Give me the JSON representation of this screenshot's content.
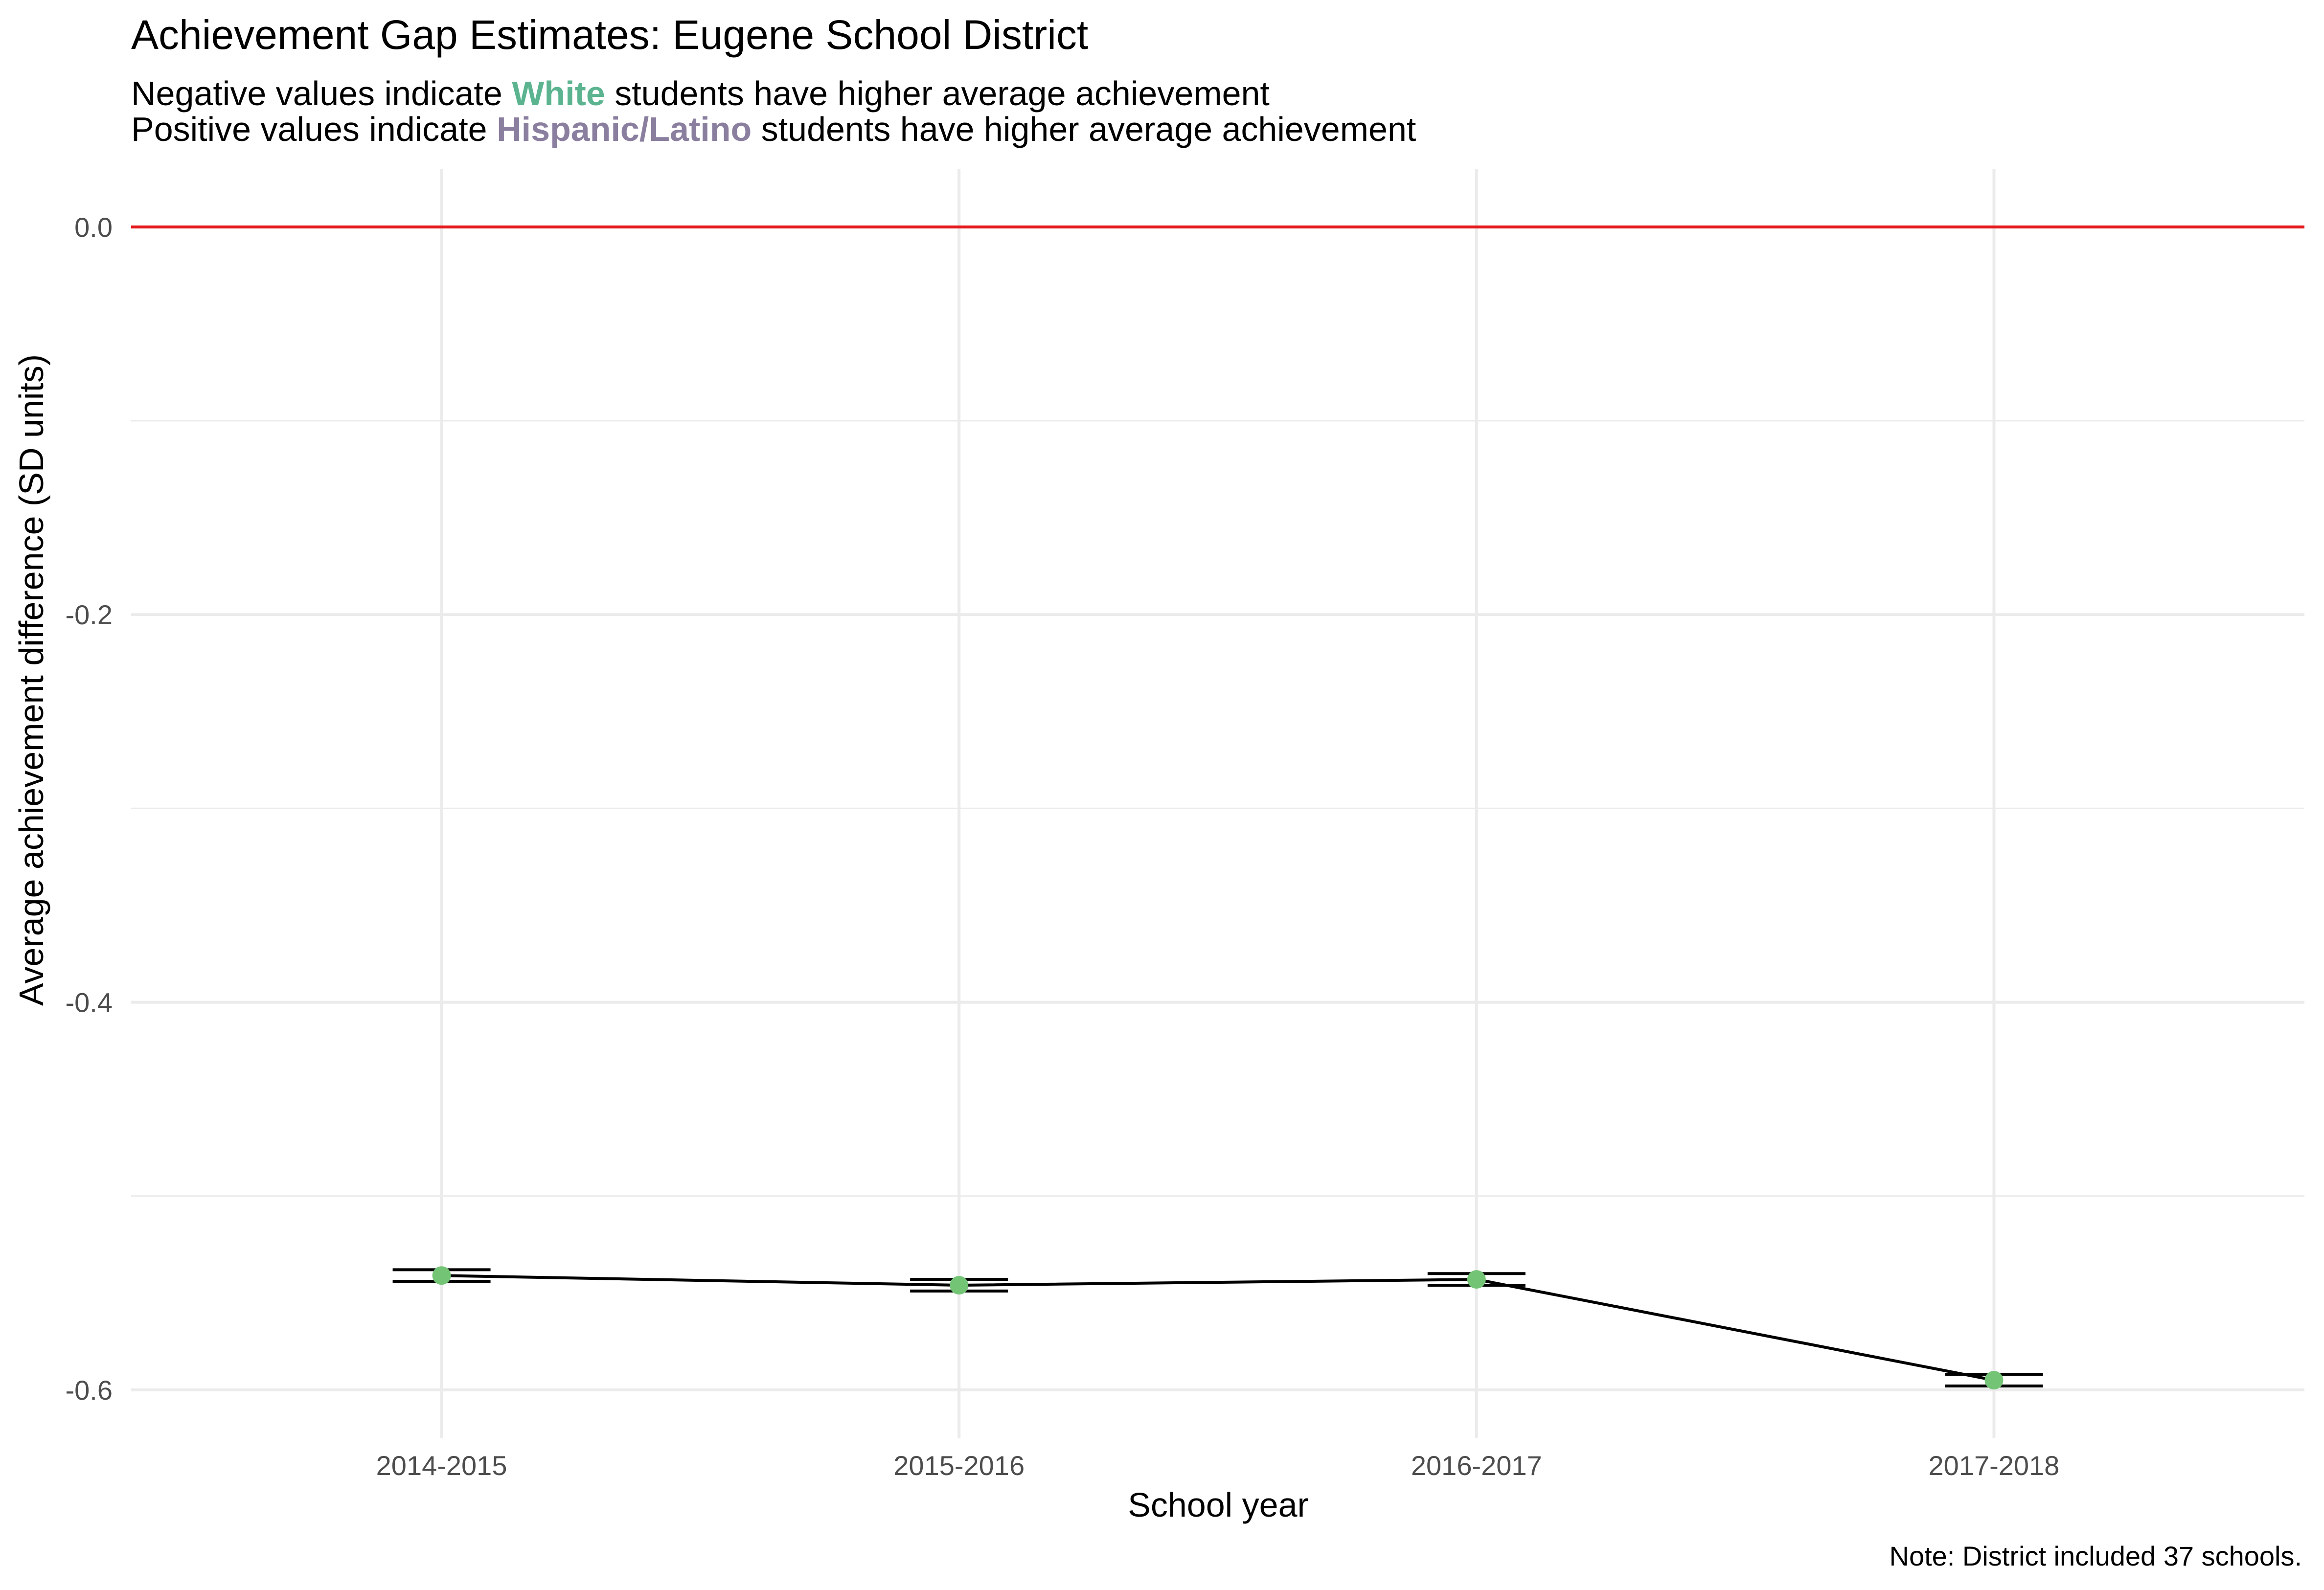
{
  "title": "Achievement Gap Estimates: Eugene School District",
  "subtitle": {
    "line1": {
      "prefix": "Negative values indicate ",
      "highlight": "White",
      "suffix": " students have higher average achievement",
      "highlight_color": "#5bb48f"
    },
    "line2": {
      "prefix": "Positive values indicate ",
      "highlight": "Hispanic/Latino",
      "suffix": " students have higher average achievement",
      "highlight_color": "#8b7fa0"
    }
  },
  "caption": "Note: District included 37 schools.",
  "colors": {
    "reference_line": "#e41a1c",
    "point": "#74c476",
    "line": "#000000",
    "grid": "#ebebeb"
  },
  "chart_data": {
    "type": "line",
    "title": "Achievement Gap Estimates: Eugene School District",
    "xlabel": "School year",
    "ylabel": "Average achievement difference (SD units)",
    "categories": [
      "2014-2015",
      "2015-2016",
      "2016-2017",
      "2017-2018"
    ],
    "series": [
      {
        "values": [
          -0.541,
          -0.546,
          -0.543,
          -0.595
        ],
        "ci_lower": [
          -0.544,
          -0.549,
          -0.546,
          -0.598
        ],
        "ci_upper": [
          -0.538,
          -0.543,
          -0.54,
          -0.592
        ]
      }
    ],
    "reference_line": 0,
    "ylim": [
      -0.625,
      0.03
    ],
    "yticks": [
      0.0,
      -0.2,
      -0.4,
      -0.6
    ],
    "ytick_labels": [
      "0.0",
      "-0.2",
      "-0.4",
      "-0.6"
    ],
    "grid": true,
    "legend": "none"
  }
}
